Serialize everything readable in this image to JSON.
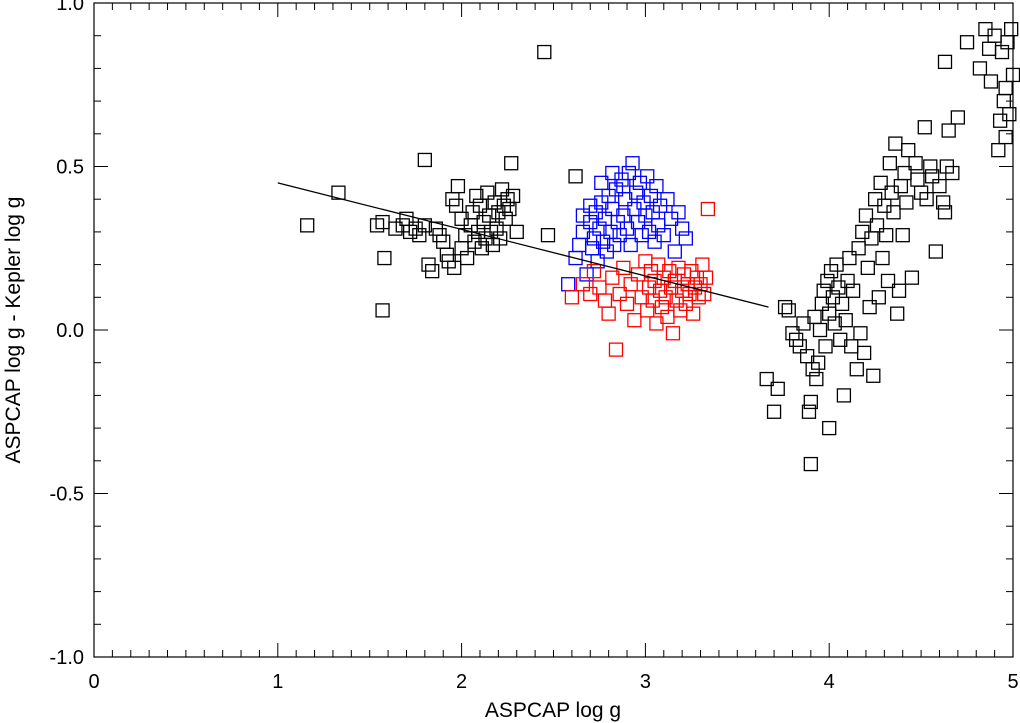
{
  "chart_data": {
    "type": "scatter",
    "title": "",
    "xlabel": "ASPCAP log g",
    "ylabel": "ASPCAP log g - Kepler log g",
    "xlim": [
      0,
      5
    ],
    "ylim": [
      -1.0,
      1.0
    ],
    "x_ticks": [
      0,
      1,
      2,
      3,
      4,
      5
    ],
    "x_tick_labels": [
      "0",
      "1",
      "2",
      "3",
      "4",
      "5"
    ],
    "y_ticks": [
      -1.0,
      -0.5,
      0.0,
      0.5,
      1.0
    ],
    "y_tick_labels": [
      "-1.0",
      "-0.5",
      "0.0",
      "0.5",
      "1.0"
    ],
    "grid": false,
    "legend": "none",
    "marker": "open-square",
    "series": [
      {
        "color": "#000000",
        "points": [
          [
            1.16,
            0.32
          ],
          [
            1.33,
            0.42
          ],
          [
            1.54,
            0.32
          ],
          [
            1.57,
            0.33
          ],
          [
            1.58,
            0.22
          ],
          [
            1.57,
            0.06
          ],
          [
            1.64,
            0.31
          ],
          [
            1.68,
            0.32
          ],
          [
            1.7,
            0.34
          ],
          [
            1.72,
            0.3
          ],
          [
            1.75,
            0.31
          ],
          [
            1.77,
            0.29
          ],
          [
            1.8,
            0.52
          ],
          [
            1.8,
            0.32
          ],
          [
            1.82,
            0.2
          ],
          [
            1.84,
            0.18
          ],
          [
            1.86,
            0.31
          ],
          [
            1.88,
            0.29
          ],
          [
            1.9,
            0.27
          ],
          [
            1.92,
            0.23
          ],
          [
            1.95,
            0.4
          ],
          [
            1.97,
            0.38
          ],
          [
            1.98,
            0.44
          ],
          [
            2.0,
            0.34
          ],
          [
            2.0,
            0.25
          ],
          [
            2.02,
            0.29
          ],
          [
            2.03,
            0.22
          ],
          [
            2.05,
            0.32
          ],
          [
            2.06,
            0.36
          ],
          [
            2.07,
            0.27
          ],
          [
            2.08,
            0.41
          ],
          [
            2.09,
            0.3
          ],
          [
            2.1,
            0.38
          ],
          [
            2.11,
            0.25
          ],
          [
            2.12,
            0.33
          ],
          [
            2.13,
            0.28
          ],
          [
            2.14,
            0.42
          ],
          [
            2.15,
            0.35
          ],
          [
            2.16,
            0.3
          ],
          [
            2.17,
            0.26
          ],
          [
            2.18,
            0.39
          ],
          [
            2.19,
            0.31
          ],
          [
            2.2,
            0.36
          ],
          [
            2.21,
            0.28
          ],
          [
            2.22,
            0.43
          ],
          [
            2.23,
            0.38
          ],
          [
            2.24,
            0.34
          ],
          [
            2.25,
            0.4
          ],
          [
            2.26,
            0.37
          ],
          [
            2.27,
            0.51
          ],
          [
            2.28,
            0.41
          ],
          [
            2.3,
            0.3
          ],
          [
            1.93,
            0.21
          ],
          [
            1.96,
            0.19
          ],
          [
            2.45,
            0.85
          ],
          [
            2.47,
            0.29
          ],
          [
            2.62,
            0.47
          ],
          [
            3.66,
            -0.15
          ],
          [
            3.7,
            -0.25
          ],
          [
            3.72,
            -0.18
          ],
          [
            3.76,
            0.07
          ],
          [
            3.78,
            0.06
          ],
          [
            3.8,
            -0.01
          ],
          [
            3.82,
            -0.03
          ],
          [
            3.84,
            -0.05
          ],
          [
            3.86,
            0.02
          ],
          [
            3.88,
            -0.08
          ],
          [
            3.89,
            -0.25
          ],
          [
            3.9,
            -0.41
          ],
          [
            3.9,
            -0.22
          ],
          [
            3.91,
            -0.12
          ],
          [
            3.92,
            0.04
          ],
          [
            3.93,
            -0.15
          ],
          [
            3.94,
            -0.1
          ],
          [
            3.95,
            0.0
          ],
          [
            3.96,
            0.08
          ],
          [
            3.97,
            0.12
          ],
          [
            3.98,
            -0.05
          ],
          [
            3.99,
            0.15
          ],
          [
            4.0,
            -0.3
          ],
          [
            4.0,
            0.05
          ],
          [
            4.01,
            0.18
          ],
          [
            4.02,
            0.1
          ],
          [
            4.03,
            0.02
          ],
          [
            4.04,
            0.2
          ],
          [
            4.05,
            0.13
          ],
          [
            4.06,
            -0.03
          ],
          [
            4.07,
            0.08
          ],
          [
            4.08,
            -0.2
          ],
          [
            4.09,
            0.03
          ],
          [
            4.1,
            0.15
          ],
          [
            4.11,
            0.22
          ],
          [
            4.12,
            -0.05
          ],
          [
            4.13,
            0.12
          ],
          [
            4.15,
            -0.12
          ],
          [
            4.16,
            0.25
          ],
          [
            4.17,
            -0.01
          ],
          [
            4.18,
            0.3
          ],
          [
            4.19,
            -0.07
          ],
          [
            4.2,
            0.35
          ],
          [
            4.21,
            0.19
          ],
          [
            4.22,
            0.07
          ],
          [
            4.23,
            0.28
          ],
          [
            4.24,
            -0.14
          ],
          [
            4.25,
            0.4
          ],
          [
            4.26,
            0.32
          ],
          [
            4.27,
            0.1
          ],
          [
            4.28,
            0.45
          ],
          [
            4.29,
            0.22
          ],
          [
            4.3,
            0.38
          ],
          [
            4.31,
            0.29
          ],
          [
            4.32,
            0.15
          ],
          [
            4.33,
            0.51
          ],
          [
            4.34,
            0.42
          ],
          [
            4.35,
            0.36
          ],
          [
            4.36,
            0.57
          ],
          [
            4.37,
            0.05
          ],
          [
            4.38,
            0.12
          ],
          [
            4.39,
            0.44
          ],
          [
            4.4,
            0.29
          ],
          [
            4.41,
            0.48
          ],
          [
            4.42,
            0.39
          ],
          [
            4.43,
            0.55
          ],
          [
            4.45,
            0.16
          ],
          [
            4.47,
            0.51
          ],
          [
            4.48,
            0.46
          ],
          [
            4.5,
            0.42
          ],
          [
            4.52,
            0.62
          ],
          [
            4.53,
            0.4
          ],
          [
            4.55,
            0.5
          ],
          [
            4.56,
            0.47
          ],
          [
            4.58,
            0.24
          ],
          [
            4.6,
            0.44
          ],
          [
            4.62,
            0.39
          ],
          [
            4.63,
            0.36
          ],
          [
            4.64,
            0.5
          ],
          [
            4.65,
            0.61
          ],
          [
            4.67,
            0.48
          ],
          [
            4.7,
            0.65
          ],
          [
            4.63,
            0.82
          ],
          [
            4.75,
            0.88
          ],
          [
            4.82,
            0.8
          ],
          [
            4.85,
            0.92
          ],
          [
            4.87,
            0.86
          ],
          [
            4.88,
            0.76
          ],
          [
            4.9,
            0.9
          ],
          [
            4.92,
            0.55
          ],
          [
            4.93,
            0.64
          ],
          [
            4.95,
            0.7
          ],
          [
            4.96,
            0.59
          ],
          [
            4.97,
            0.88
          ],
          [
            4.98,
            0.66
          ],
          [
            4.99,
            0.92
          ],
          [
            5.0,
            0.78
          ],
          [
            4.94,
            0.85
          ],
          [
            4.96,
            0.74
          ]
        ]
      },
      {
        "color": "#0000ff",
        "points": [
          [
            2.58,
            0.14
          ],
          [
            2.62,
            0.22
          ],
          [
            2.64,
            0.26
          ],
          [
            2.66,
            0.3
          ],
          [
            2.68,
            0.17
          ],
          [
            2.7,
            0.33
          ],
          [
            2.71,
            0.25
          ],
          [
            2.72,
            0.28
          ],
          [
            2.73,
            0.36
          ],
          [
            2.74,
            0.21
          ],
          [
            2.75,
            0.31
          ],
          [
            2.76,
            0.39
          ],
          [
            2.77,
            0.27
          ],
          [
            2.78,
            0.34
          ],
          [
            2.79,
            0.24
          ],
          [
            2.8,
            0.41
          ],
          [
            2.81,
            0.3
          ],
          [
            2.82,
            0.37
          ],
          [
            2.83,
            0.26
          ],
          [
            2.84,
            0.43
          ],
          [
            2.85,
            0.33
          ],
          [
            2.86,
            0.29
          ],
          [
            2.87,
            0.46
          ],
          [
            2.88,
            0.35
          ],
          [
            2.89,
            0.4
          ],
          [
            2.9,
            0.31
          ],
          [
            2.91,
            0.48
          ],
          [
            2.92,
            0.26
          ],
          [
            2.93,
            0.51
          ],
          [
            2.94,
            0.37
          ],
          [
            2.95,
            0.42
          ],
          [
            2.96,
            0.33
          ],
          [
            2.97,
            0.45
          ],
          [
            2.98,
            0.29
          ],
          [
            2.99,
            0.39
          ],
          [
            3.0,
            0.35
          ],
          [
            3.01,
            0.47
          ],
          [
            3.02,
            0.3
          ],
          [
            3.03,
            0.41
          ],
          [
            3.04,
            0.36
          ],
          [
            3.05,
            0.27
          ],
          [
            3.06,
            0.44
          ],
          [
            3.07,
            0.32
          ],
          [
            3.08,
            0.38
          ],
          [
            3.1,
            0.29
          ],
          [
            3.12,
            0.4
          ],
          [
            3.14,
            0.34
          ],
          [
            3.16,
            0.24
          ],
          [
            3.18,
            0.36
          ],
          [
            3.2,
            0.31
          ],
          [
            3.22,
            0.28
          ],
          [
            2.76,
            0.45
          ],
          [
            2.82,
            0.48
          ],
          [
            2.88,
            0.44
          ],
          [
            2.7,
            0.38
          ],
          [
            2.66,
            0.35
          ]
        ]
      },
      {
        "color": "#ff0000",
        "points": [
          [
            2.75,
            0.13
          ],
          [
            2.78,
            0.09
          ],
          [
            2.8,
            0.05
          ],
          [
            2.82,
            0.16
          ],
          [
            2.84,
            -0.06
          ],
          [
            2.86,
            0.11
          ],
          [
            2.88,
            0.19
          ],
          [
            2.9,
            0.08
          ],
          [
            2.92,
            0.14
          ],
          [
            2.94,
            0.03
          ],
          [
            2.96,
            0.17
          ],
          [
            2.98,
            0.1
          ],
          [
            3.0,
            0.21
          ],
          [
            3.01,
            0.06
          ],
          [
            3.02,
            0.13
          ],
          [
            3.03,
            0.18
          ],
          [
            3.04,
            0.09
          ],
          [
            3.05,
            0.15
          ],
          [
            3.06,
            0.02
          ],
          [
            3.07,
            0.2
          ],
          [
            3.08,
            0.12
          ],
          [
            3.09,
            0.07
          ],
          [
            3.1,
            0.16
          ],
          [
            3.11,
            0.1
          ],
          [
            3.12,
            0.04
          ],
          [
            3.13,
            0.18
          ],
          [
            3.14,
            0.13
          ],
          [
            3.15,
            -0.01
          ],
          [
            3.16,
            0.15
          ],
          [
            3.17,
            0.09
          ],
          [
            3.18,
            0.19
          ],
          [
            3.19,
            0.06
          ],
          [
            3.2,
            0.12
          ],
          [
            3.21,
            0.17
          ],
          [
            3.22,
            0.08
          ],
          [
            3.23,
            0.14
          ],
          [
            3.24,
            0.11
          ],
          [
            3.25,
            0.18
          ],
          [
            3.26,
            0.05
          ],
          [
            3.27,
            0.13
          ],
          [
            3.28,
            0.16
          ],
          [
            3.29,
            0.1
          ],
          [
            3.3,
            0.14
          ],
          [
            3.31,
            0.2
          ],
          [
            3.32,
            0.11
          ],
          [
            3.33,
            0.16
          ],
          [
            3.34,
            0.37
          ],
          [
            2.6,
            0.1
          ],
          [
            2.66,
            0.14
          ],
          [
            2.7,
            0.11
          ],
          [
            2.72,
            0.18
          ]
        ]
      }
    ],
    "fit_line": {
      "color": "#000000",
      "x": [
        1.0,
        3.67
      ],
      "y": [
        0.45,
        0.07
      ]
    }
  }
}
